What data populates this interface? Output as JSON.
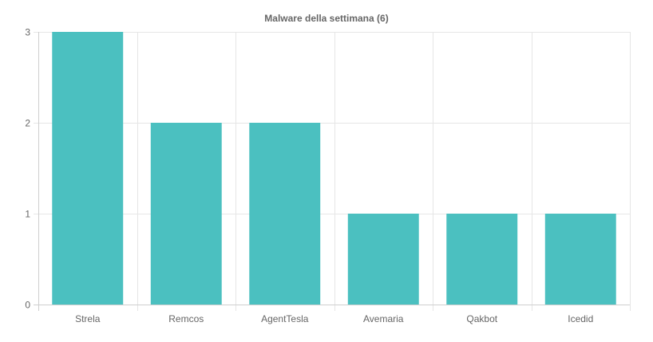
{
  "chart_data": {
    "type": "bar",
    "title": "Malware della settimana (6)",
    "categories": [
      "Strela",
      "Remcos",
      "AgentTesla",
      "Avemaria",
      "Qakbot",
      "Icedid"
    ],
    "values": [
      3,
      2,
      2,
      1,
      1,
      1
    ],
    "ylim": [
      0,
      3
    ],
    "yticks": [
      0,
      1,
      2,
      3
    ],
    "xlabel": "",
    "ylabel": "",
    "grid": true,
    "bar_color": "#4bc0c0"
  }
}
